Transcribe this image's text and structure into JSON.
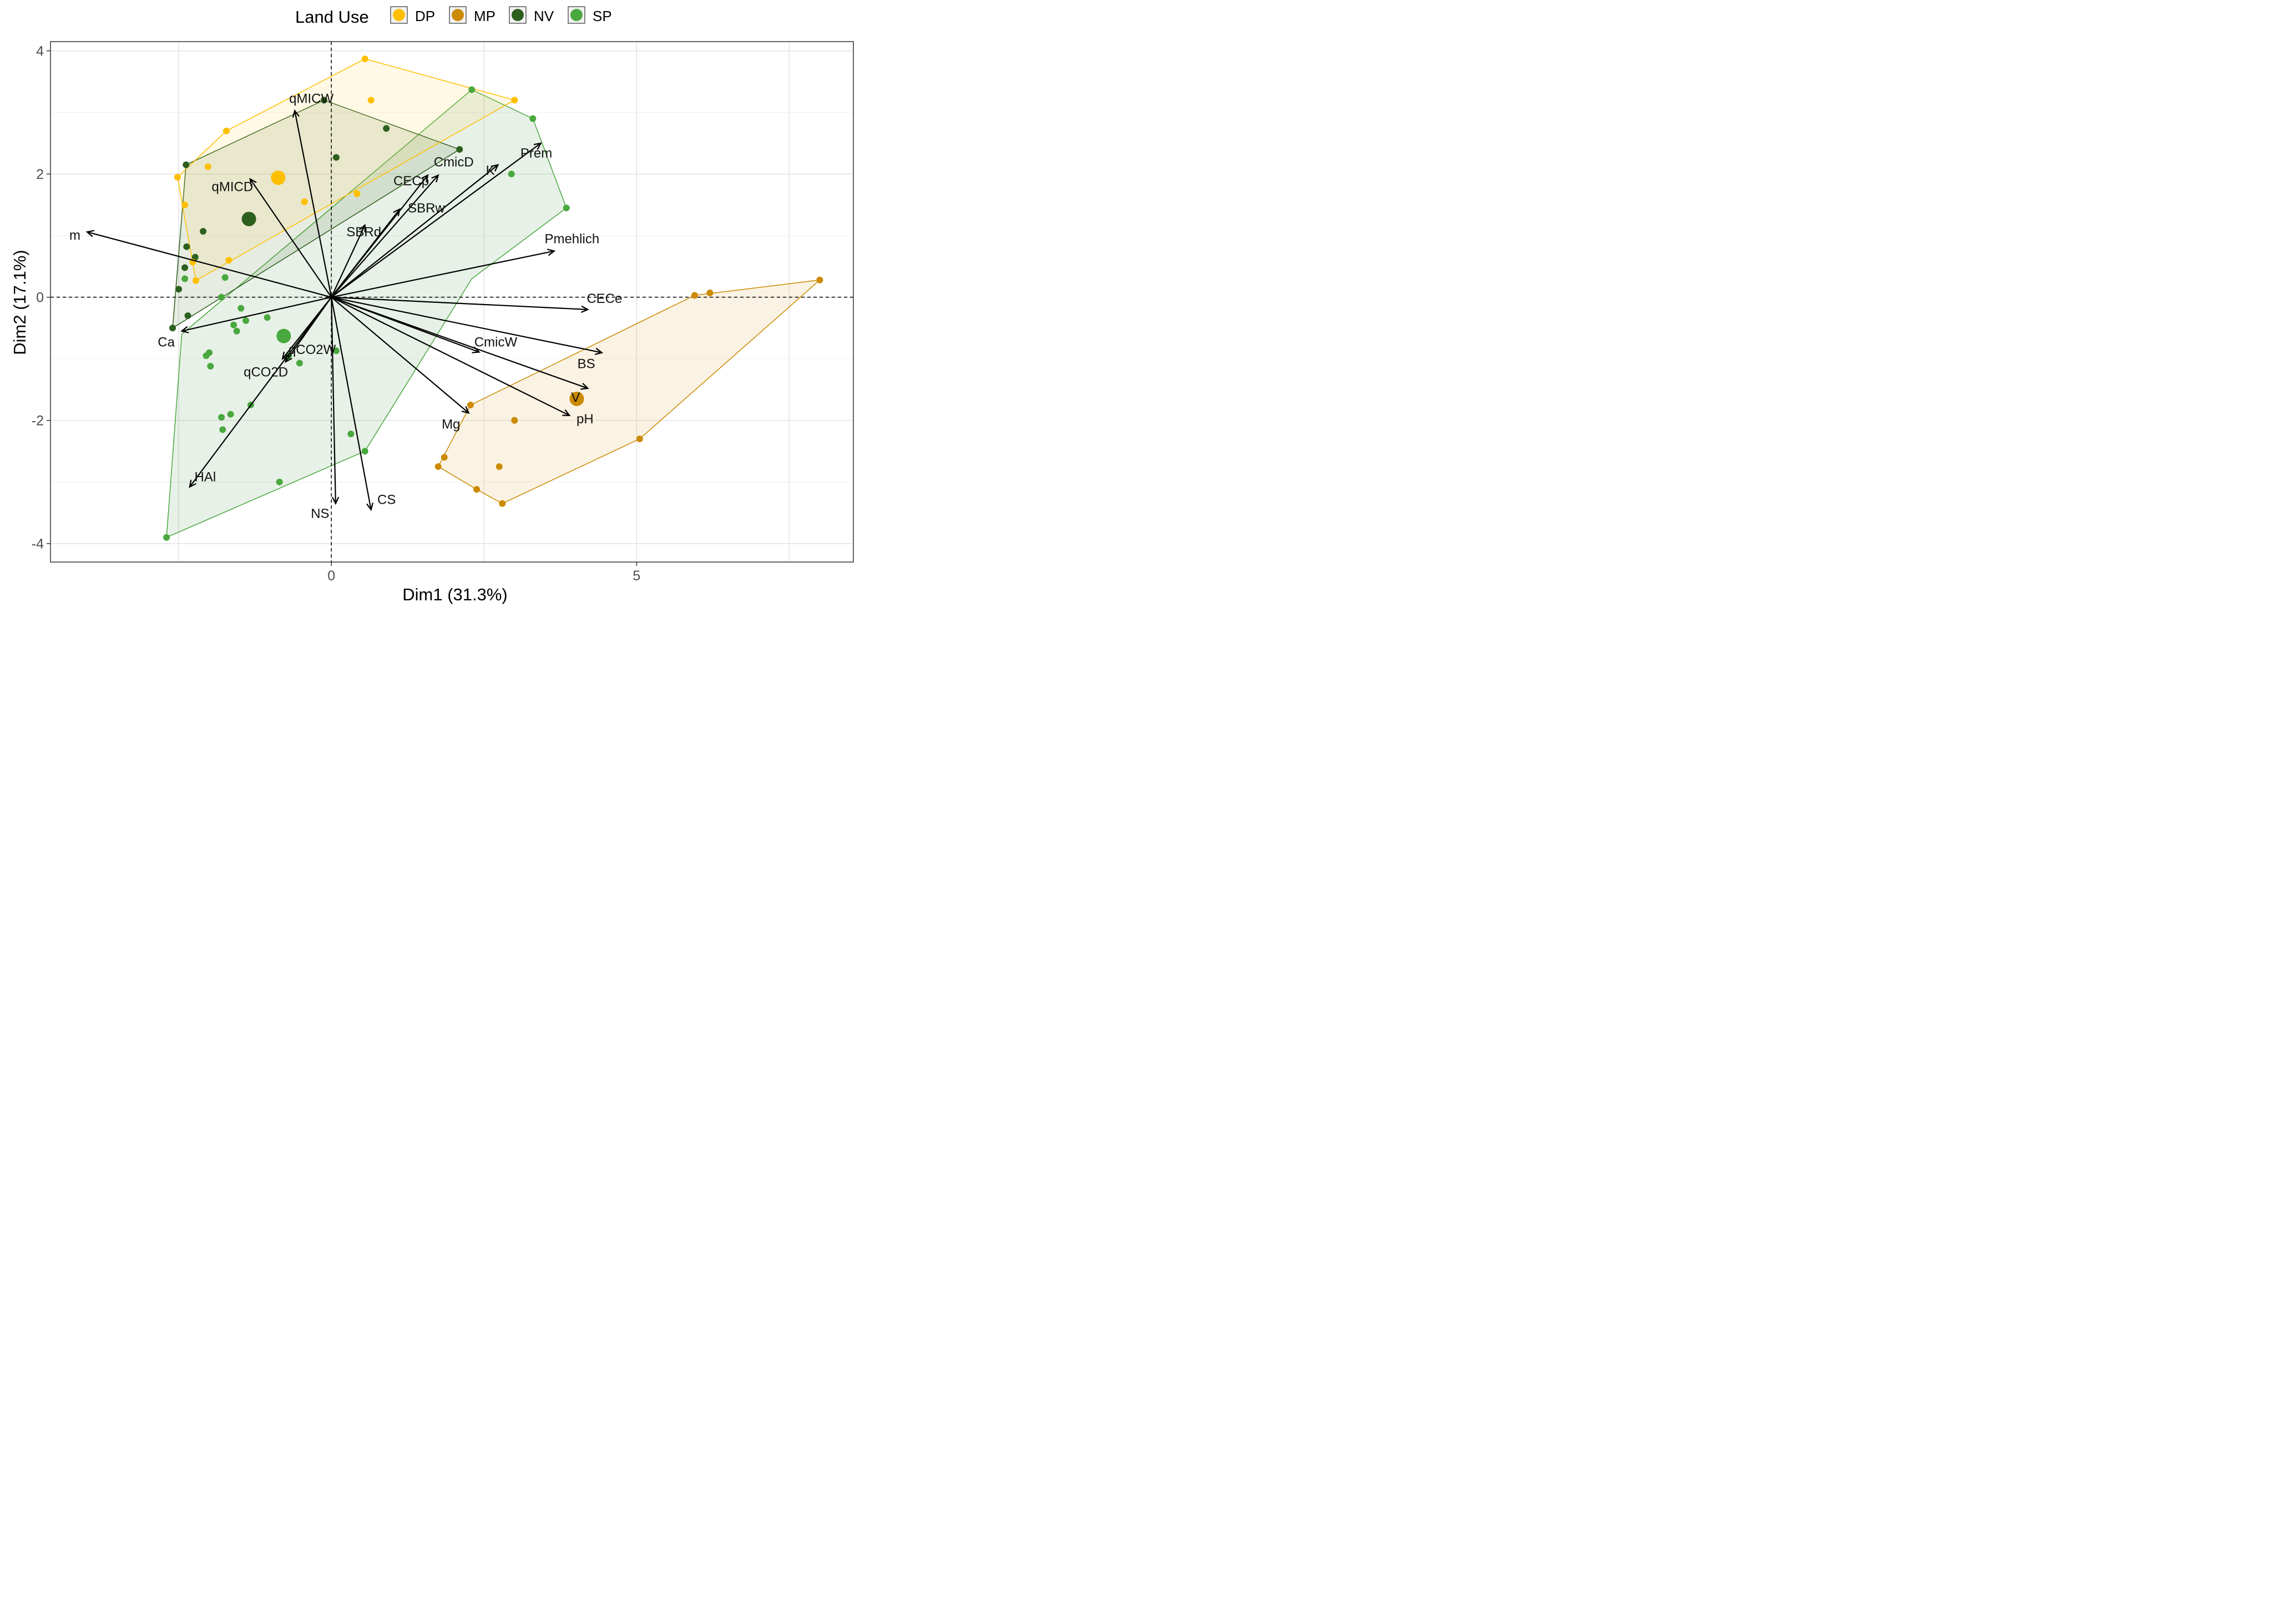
{
  "chart_data": {
    "type": "biplot",
    "xlabel": "Dim1 (31.3%)",
    "ylabel": "Dim2 (17.1%)",
    "xlim": [
      -4.6,
      8.55
    ],
    "ylim": [
      -4.3,
      4.15
    ],
    "x_ticks": [
      0,
      5
    ],
    "y_ticks": [
      -4,
      -2,
      0,
      2,
      4
    ],
    "legend": {
      "title": "Land Use",
      "entries": [
        {
          "key": "DP",
          "label": "DP",
          "color": "#FFBF00"
        },
        {
          "key": "MP",
          "label": "MP",
          "color": "#CC8A00"
        },
        {
          "key": "NV",
          "label": "NV",
          "color": "#2D5F1E"
        },
        {
          "key": "SP",
          "label": "SP",
          "color": "#49A83E"
        }
      ]
    },
    "groups": [
      {
        "name": "SP",
        "color": "#49A83E",
        "fill": "#2E7D32",
        "fill_opacity": 0.11,
        "hull": [
          [
            -2.7,
            -3.9
          ],
          [
            0.55,
            -2.5
          ],
          [
            2.3,
            0.3
          ],
          [
            3.85,
            1.45
          ],
          [
            3.3,
            2.9
          ],
          [
            2.3,
            3.37
          ],
          [
            -2.45,
            -0.6
          ]
        ],
        "points": [
          [
            -2.7,
            -3.9
          ],
          [
            -0.85,
            -3.0
          ],
          [
            0.32,
            -2.22
          ],
          [
            0.55,
            -2.5
          ],
          [
            -1.78,
            -2.15
          ],
          [
            -1.65,
            -1.9
          ],
          [
            -1.8,
            -1.95
          ],
          [
            -1.32,
            -1.75
          ],
          [
            -1.98,
            -1.12
          ],
          [
            -2.0,
            -0.9
          ],
          [
            -2.05,
            -0.95
          ],
          [
            -0.52,
            -1.07
          ],
          [
            -0.7,
            -0.95
          ],
          [
            0.08,
            -0.87
          ],
          [
            -1.55,
            -0.55
          ],
          [
            -1.6,
            -0.45
          ],
          [
            -1.4,
            -0.38
          ],
          [
            -1.05,
            -0.33
          ],
          [
            -1.48,
            -0.18
          ],
          [
            -1.8,
            0.0
          ],
          [
            -1.74,
            0.32
          ],
          [
            -2.4,
            0.3
          ],
          [
            2.95,
            2.0
          ],
          [
            3.3,
            2.9
          ],
          [
            3.85,
            1.45
          ],
          [
            2.3,
            3.37
          ]
        ],
        "centroid": [
          -0.78,
          -0.63
        ]
      },
      {
        "name": "NV",
        "color": "#2D5F1E",
        "fill": "#3A6B1C",
        "fill_opacity": 0.13,
        "hull": [
          [
            -2.6,
            -0.5
          ],
          [
            -2.38,
            2.15
          ],
          [
            -0.12,
            3.2
          ],
          [
            2.1,
            2.4
          ]
        ],
        "points": [
          [
            -2.6,
            -0.5
          ],
          [
            -2.35,
            -0.3
          ],
          [
            -2.5,
            0.13
          ],
          [
            -2.4,
            0.48
          ],
          [
            -2.23,
            0.65
          ],
          [
            -2.37,
            0.82
          ],
          [
            -2.1,
            1.07
          ],
          [
            -2.38,
            2.15
          ],
          [
            0.08,
            2.27
          ],
          [
            0.9,
            2.74
          ],
          [
            2.1,
            2.4
          ],
          [
            -0.12,
            3.2
          ]
        ],
        "centroid": [
          -1.35,
          1.27
        ]
      },
      {
        "name": "DP",
        "color": "#FFBF00",
        "fill": "#FFD54F",
        "fill_opacity": 0.14,
        "hull": [
          [
            -2.22,
            0.27
          ],
          [
            -2.52,
            1.95
          ],
          [
            -1.72,
            2.7
          ],
          [
            0.55,
            3.87
          ],
          [
            3.0,
            3.2
          ]
        ],
        "points": [
          [
            -2.22,
            0.27
          ],
          [
            -2.27,
            0.57
          ],
          [
            -1.68,
            0.6
          ],
          [
            -2.4,
            1.5
          ],
          [
            -2.52,
            1.95
          ],
          [
            -2.02,
            2.12
          ],
          [
            -1.72,
            2.7
          ],
          [
            -0.44,
            1.55
          ],
          [
            0.42,
            1.68
          ],
          [
            0.65,
            3.2
          ],
          [
            0.55,
            3.87
          ],
          [
            3.0,
            3.2
          ]
        ],
        "centroid": [
          -0.87,
          1.94
        ]
      },
      {
        "name": "MP",
        "color": "#CC8A00",
        "fill": "#E6B566",
        "fill_opacity": 0.18,
        "hull": [
          [
            1.75,
            -2.75
          ],
          [
            2.38,
            -3.12
          ],
          [
            2.8,
            -3.35
          ],
          [
            5.05,
            -2.3
          ],
          [
            8.0,
            0.28
          ],
          [
            5.95,
            0.03
          ],
          [
            2.28,
            -1.75
          ]
        ],
        "points": [
          [
            1.75,
            -2.75
          ],
          [
            1.85,
            -2.6
          ],
          [
            2.38,
            -3.12
          ],
          [
            2.8,
            -3.35
          ],
          [
            2.75,
            -2.75
          ],
          [
            3.0,
            -2.0
          ],
          [
            2.28,
            -1.75
          ],
          [
            5.05,
            -2.3
          ],
          [
            5.95,
            0.03
          ],
          [
            6.2,
            0.07
          ],
          [
            8.0,
            0.28
          ]
        ],
        "centroid": [
          4.02,
          -1.65
        ]
      }
    ],
    "variables": [
      {
        "name": "m",
        "x": -4.0,
        "y": 1.06
      },
      {
        "name": "qMICW",
        "x": -0.6,
        "y": 3.03
      },
      {
        "name": "qMICD",
        "x": -1.33,
        "y": 1.92
      },
      {
        "name": "SBRd",
        "x": 0.55,
        "y": 1.17
      },
      {
        "name": "CECp",
        "x": 1.58,
        "y": 1.98
      },
      {
        "name": "CmicD",
        "x": 1.75,
        "y": 1.98
      },
      {
        "name": "SBRw",
        "x": 1.12,
        "y": 1.43
      },
      {
        "name": "K",
        "x": 2.73,
        "y": 2.15
      },
      {
        "name": "Prem",
        "x": 3.43,
        "y": 2.5
      },
      {
        "name": "Pmehlich",
        "x": 3.65,
        "y": 0.75
      },
      {
        "name": "CECe",
        "x": 4.2,
        "y": -0.2
      },
      {
        "name": "BS",
        "x": 4.43,
        "y": -0.9
      },
      {
        "name": "CmicW",
        "x": 2.42,
        "y": -0.89
      },
      {
        "name": "V",
        "x": 4.2,
        "y": -1.48
      },
      {
        "name": "pH",
        "x": 3.9,
        "y": -1.92
      },
      {
        "name": "Mg",
        "x": 2.25,
        "y": -1.88
      },
      {
        "name": "CS",
        "x": 0.65,
        "y": -3.45
      },
      {
        "name": "NS",
        "x": 0.07,
        "y": -3.35
      },
      {
        "name": "HAl",
        "x": -2.32,
        "y": -3.08
      },
      {
        "name": "qCO2D",
        "x": -0.8,
        "y": -1.0
      },
      {
        "name": "qCO2W",
        "x": -0.75,
        "y": -1.05
      },
      {
        "name": "Ca",
        "x": -2.45,
        "y": -0.55
      }
    ]
  }
}
